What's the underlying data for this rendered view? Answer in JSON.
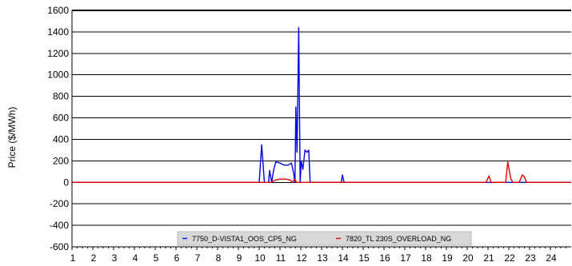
{
  "chart_data": {
    "type": "line",
    "title": "",
    "xlabel": "",
    "ylabel": "Price ($/MWh)",
    "xlim": [
      1,
      25
    ],
    "ylim": [
      -600,
      1600
    ],
    "x_ticks": [
      "1",
      "2",
      "3",
      "4",
      "5",
      "6",
      "7",
      "8",
      "9",
      "10",
      "11",
      "12",
      "13",
      "14",
      "15",
      "16",
      "17",
      "18",
      "19",
      "20",
      "21",
      "22",
      "23",
      "24"
    ],
    "y_ticks": [
      "1600",
      "1400",
      "1200",
      "1000",
      "800",
      "600",
      "400",
      "200",
      "0",
      "-200",
      "-400",
      "-600"
    ],
    "y_tick_values": [
      1600,
      1400,
      1200,
      1000,
      800,
      600,
      400,
      200,
      0,
      -200,
      -400,
      -600
    ],
    "grid": "horizontal",
    "legend_position": "bottom-center",
    "series": [
      {
        "name": "7750_D-VISTA1_OOS_CP5_NG",
        "color": "#0000dd",
        "points": [
          [
            1,
            0
          ],
          [
            10.0,
            0
          ],
          [
            10.12,
            350
          ],
          [
            10.25,
            0
          ],
          [
            10.45,
            0
          ],
          [
            10.5,
            110
          ],
          [
            10.6,
            0
          ],
          [
            10.7,
            120
          ],
          [
            10.8,
            190
          ],
          [
            11.0,
            180
          ],
          [
            11.2,
            160
          ],
          [
            11.4,
            160
          ],
          [
            11.55,
            180
          ],
          [
            11.65,
            90
          ],
          [
            11.72,
            0
          ],
          [
            11.76,
            700
          ],
          [
            11.82,
            280
          ],
          [
            11.9,
            1440
          ],
          [
            11.97,
            0
          ],
          [
            12.02,
            200
          ],
          [
            12.1,
            120
          ],
          [
            12.2,
            300
          ],
          [
            12.3,
            280
          ],
          [
            12.38,
            300
          ],
          [
            12.45,
            0
          ],
          [
            13.95,
            0
          ],
          [
            14.0,
            70
          ],
          [
            14.08,
            0
          ],
          [
            25,
            0
          ]
        ]
      },
      {
        "name": "7820_TL 230S_OVERLOAD_NG",
        "color": "#dd0000",
        "points": [
          [
            1,
            0
          ],
          [
            10.6,
            0
          ],
          [
            10.75,
            20
          ],
          [
            11.0,
            30
          ],
          [
            11.3,
            30
          ],
          [
            11.5,
            20
          ],
          [
            11.6,
            0
          ],
          [
            11.7,
            30
          ],
          [
            11.8,
            0
          ],
          [
            20.9,
            0
          ],
          [
            21.05,
            60
          ],
          [
            21.15,
            0
          ],
          [
            21.85,
            0
          ],
          [
            21.95,
            190
          ],
          [
            22.1,
            30
          ],
          [
            22.2,
            0
          ],
          [
            22.5,
            0
          ],
          [
            22.65,
            70
          ],
          [
            22.75,
            50
          ],
          [
            22.85,
            0
          ],
          [
            25,
            0
          ]
        ]
      }
    ]
  }
}
